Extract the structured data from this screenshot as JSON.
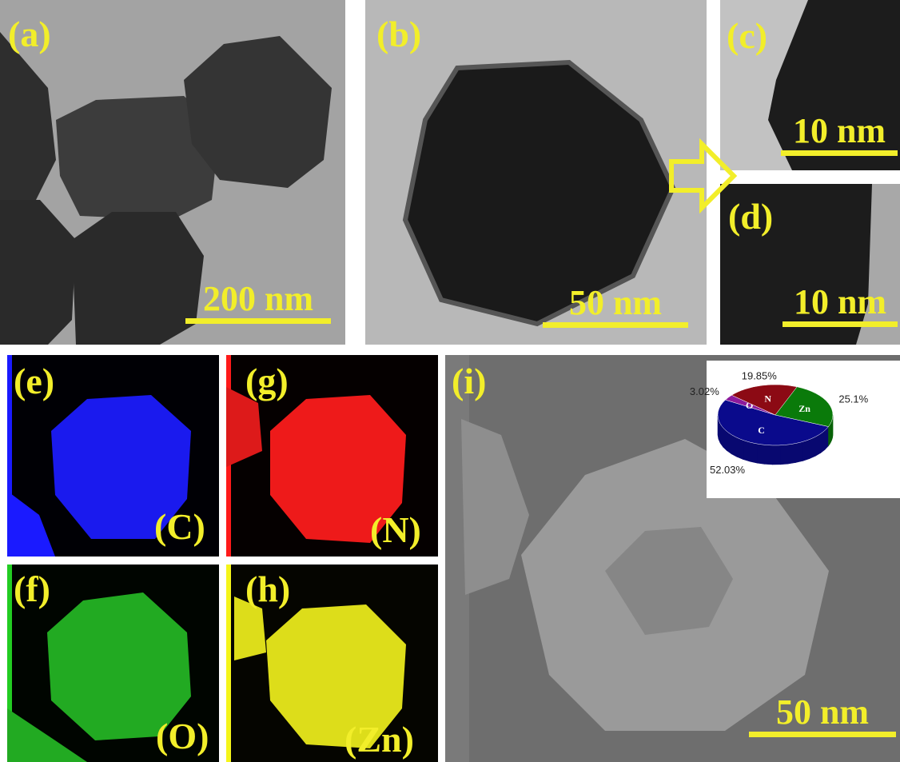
{
  "panels": {
    "a": {
      "label": "(a)",
      "scale": "200 nm"
    },
    "b": {
      "label": "(b)",
      "scale": "50 nm"
    },
    "c": {
      "label": "(c)",
      "scale": "10 nm"
    },
    "d": {
      "label": "(d)",
      "scale": "10 nm"
    },
    "e": {
      "label": "(e)",
      "element": "(C)",
      "color": "#1a1aff"
    },
    "g": {
      "label": "(g)",
      "element": "(N)",
      "color": "#ff1a1a"
    },
    "f": {
      "label": "(f)",
      "element": "(O)",
      "color": "#22cc22"
    },
    "h": {
      "label": "(h)",
      "element": "(Zn)",
      "color": "#f5f51a"
    },
    "i": {
      "label": "(i)",
      "scale": "50 nm"
    }
  },
  "chart_data": {
    "type": "pie",
    "slices": [
      {
        "label": "C",
        "value": 52.03,
        "value_label": "52.03%",
        "color": "#0a0a8c"
      },
      {
        "label": "Zn",
        "value": 25.1,
        "value_label": "25.1%",
        "color": "#0a7a0a"
      },
      {
        "label": "N",
        "value": 19.85,
        "value_label": "19.85%",
        "color": "#8c0a14"
      },
      {
        "label": "O",
        "value": 3.02,
        "value_label": "3.02%",
        "color": "#8c1a9c"
      }
    ]
  }
}
